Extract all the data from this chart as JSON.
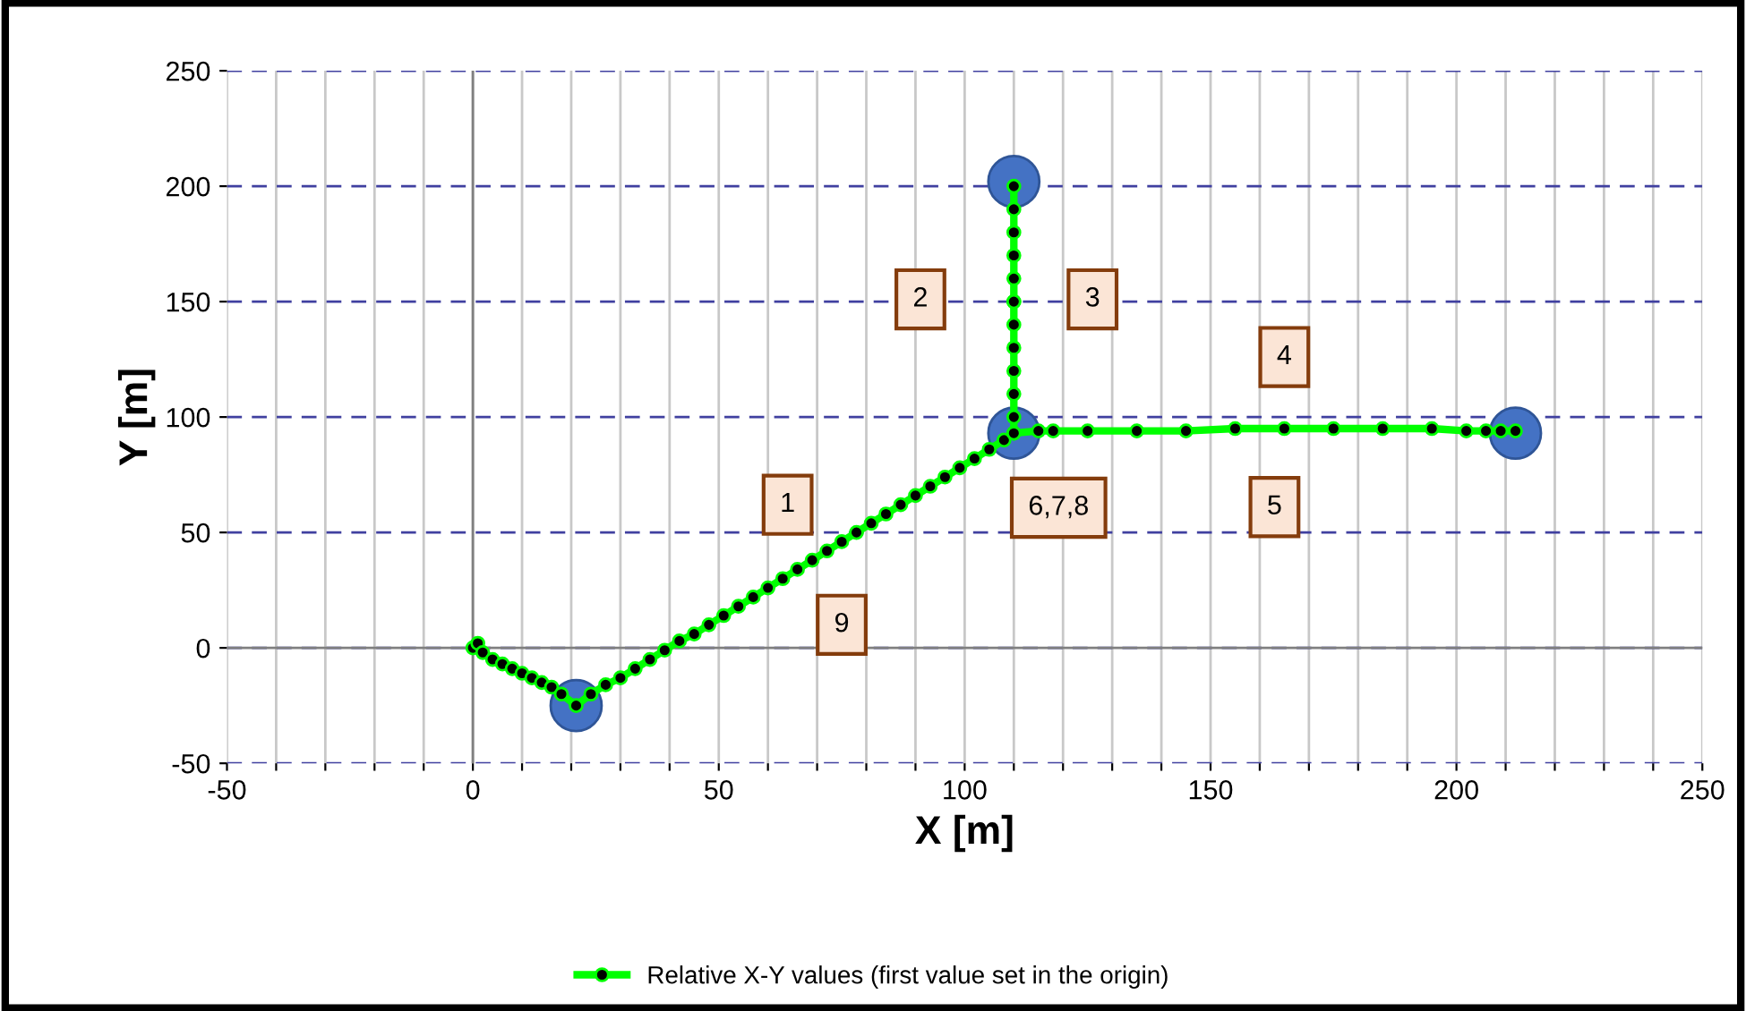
{
  "chart_data": {
    "type": "line",
    "xlabel": "X [m]",
    "ylabel": "Y [m]",
    "xlim": [
      -50,
      250
    ],
    "ylim": [
      -50,
      250
    ],
    "xticks": [
      -50,
      {
        "value": -40,
        "label": null
      },
      {
        "value": -30,
        "label": null
      },
      {
        "value": -20,
        "label": null
      },
      {
        "value": -10,
        "label": null
      },
      0,
      {
        "value": 10,
        "label": null
      },
      {
        "value": 20,
        "label": null
      },
      {
        "value": 30,
        "label": null
      },
      {
        "value": 40,
        "label": null
      },
      50,
      {
        "value": 60,
        "label": null
      },
      {
        "value": 70,
        "label": null
      },
      {
        "value": 80,
        "label": null
      },
      {
        "value": 90,
        "label": null
      },
      100,
      {
        "value": 110,
        "label": null
      },
      {
        "value": 120,
        "label": null
      },
      {
        "value": 130,
        "label": null
      },
      {
        "value": 140,
        "label": null
      },
      150,
      {
        "value": 160,
        "label": null
      },
      {
        "value": 170,
        "label": null
      },
      {
        "value": 180,
        "label": null
      },
      {
        "value": 190,
        "label": null
      },
      200,
      {
        "value": 210,
        "label": null
      },
      {
        "value": 220,
        "label": null
      },
      {
        "value": 230,
        "label": null
      },
      {
        "value": 240,
        "label": null
      },
      250
    ],
    "yticks": [
      -50,
      0,
      50,
      100,
      150,
      200,
      250
    ],
    "grid": true,
    "legend": "bottom",
    "marker": "circle",
    "line_style": "solid",
    "series": [
      {
        "name": "Relative X-Y values (first value set in the origin)",
        "color": "#00ff00",
        "x": [
          0,
          1,
          2,
          4,
          6,
          8,
          10,
          12,
          14,
          16,
          18,
          21,
          24,
          27,
          30,
          33,
          36,
          39,
          42,
          45,
          48,
          51,
          54,
          57,
          60,
          63,
          66,
          69,
          72,
          75,
          78,
          81,
          84,
          87,
          90,
          93,
          96,
          99,
          102,
          105,
          108,
          110,
          110,
          110,
          110,
          110,
          110,
          110,
          110,
          110,
          110,
          110,
          110,
          110,
          110,
          115,
          118,
          125,
          135,
          145,
          155,
          165,
          175,
          185,
          195,
          202,
          206,
          209,
          212
        ],
        "values": [
          0,
          2,
          -2,
          -5,
          -7,
          -9,
          -11,
          -13,
          -15,
          -17,
          -20,
          -25,
          -20,
          -16,
          -13,
          -9,
          -5,
          -1,
          3,
          6,
          10,
          14,
          18,
          22,
          26,
          30,
          34,
          38,
          42,
          46,
          50,
          54,
          58,
          62,
          66,
          70,
          74,
          78,
          82,
          86,
          90,
          93,
          100,
          110,
          120,
          130,
          140,
          150,
          160,
          170,
          180,
          190,
          200,
          150,
          93,
          94,
          94,
          94,
          94,
          94,
          95,
          95,
          95,
          95,
          95,
          94,
          94,
          94,
          94
        ]
      },
      {
        "color": "#4472c4",
        "type": "scatter",
        "x": [
          21,
          110,
          110,
          212
        ],
        "values": [
          -25,
          202,
          93,
          93
        ]
      }
    ],
    "annotations": [
      {
        "text": "1",
        "x": 64,
        "y": 62
      },
      {
        "text": "2",
        "x": 91,
        "y": 151
      },
      {
        "text": "3",
        "x": 126,
        "y": 151
      },
      {
        "text": "4",
        "x": 165,
        "y": 126
      },
      {
        "text": "5",
        "x": 163,
        "y": 61
      },
      {
        "text": "6,7,8",
        "x": 110,
        "y": 93
      },
      {
        "text": "9",
        "x": 75,
        "y": 10
      }
    ]
  }
}
